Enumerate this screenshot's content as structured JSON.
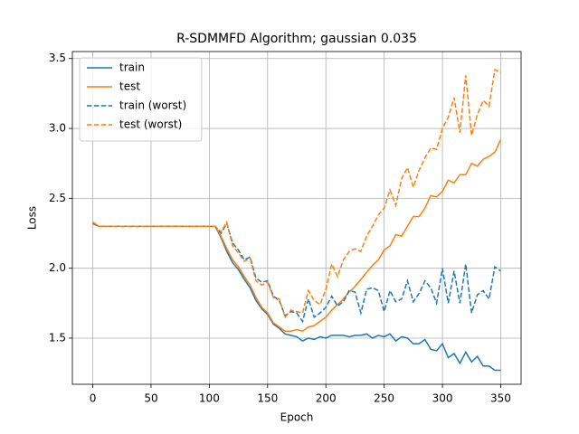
{
  "chart_data": {
    "type": "line",
    "title": "R-SDMMFD Algorithm; gaussian 0.035",
    "xlabel": "Epoch",
    "ylabel": "Loss",
    "x": [
      0,
      5,
      10,
      15,
      20,
      25,
      30,
      35,
      40,
      45,
      50,
      55,
      60,
      65,
      70,
      75,
      80,
      85,
      90,
      95,
      100,
      105,
      110,
      115,
      120,
      125,
      130,
      135,
      140,
      145,
      150,
      155,
      160,
      165,
      170,
      175,
      180,
      185,
      190,
      195,
      200,
      205,
      210,
      215,
      220,
      225,
      230,
      235,
      240,
      245,
      250,
      255,
      260,
      265,
      270,
      275,
      280,
      285,
      290,
      295,
      300,
      305,
      310,
      315,
      320,
      325,
      330,
      335,
      340,
      345,
      350
    ],
    "series": [
      {
        "name": "train",
        "color": "#1f77b4",
        "linestyle": "solid",
        "values": [
          2.32,
          2.3,
          2.3,
          2.3,
          2.3,
          2.3,
          2.3,
          2.3,
          2.3,
          2.3,
          2.3,
          2.3,
          2.3,
          2.3,
          2.3,
          2.3,
          2.3,
          2.3,
          2.3,
          2.3,
          2.3,
          2.3,
          2.22,
          2.12,
          2.04,
          1.99,
          1.92,
          1.86,
          1.77,
          1.71,
          1.67,
          1.6,
          1.57,
          1.53,
          1.52,
          1.51,
          1.48,
          1.5,
          1.49,
          1.51,
          1.5,
          1.52,
          1.52,
          1.52,
          1.51,
          1.52,
          1.52,
          1.53,
          1.5,
          1.52,
          1.51,
          1.53,
          1.48,
          1.51,
          1.5,
          1.46,
          1.46,
          1.49,
          1.42,
          1.41,
          1.46,
          1.36,
          1.39,
          1.32,
          1.4,
          1.33,
          1.37,
          1.3,
          1.3,
          1.27,
          1.27
        ]
      },
      {
        "name": "test",
        "color": "#ff7f0e",
        "linestyle": "solid",
        "values": [
          2.33,
          2.3,
          2.3,
          2.3,
          2.3,
          2.3,
          2.3,
          2.3,
          2.3,
          2.3,
          2.3,
          2.3,
          2.3,
          2.3,
          2.3,
          2.3,
          2.3,
          2.3,
          2.3,
          2.3,
          2.3,
          2.3,
          2.23,
          2.14,
          2.06,
          2.01,
          1.94,
          1.88,
          1.79,
          1.72,
          1.68,
          1.61,
          1.58,
          1.55,
          1.55,
          1.56,
          1.55,
          1.58,
          1.59,
          1.62,
          1.65,
          1.7,
          1.74,
          1.78,
          1.83,
          1.87,
          1.92,
          1.97,
          2.02,
          2.06,
          2.13,
          2.16,
          2.24,
          2.23,
          2.3,
          2.37,
          2.37,
          2.43,
          2.52,
          2.51,
          2.55,
          2.63,
          2.61,
          2.67,
          2.67,
          2.75,
          2.73,
          2.78,
          2.8,
          2.83,
          2.92
        ]
      },
      {
        "name": "train (worst)",
        "color": "#1f77b4",
        "linestyle": "dashed",
        "values": [
          2.32,
          2.3,
          2.3,
          2.3,
          2.3,
          2.3,
          2.3,
          2.3,
          2.3,
          2.3,
          2.3,
          2.3,
          2.3,
          2.3,
          2.3,
          2.3,
          2.3,
          2.3,
          2.3,
          2.3,
          2.3,
          2.3,
          2.25,
          2.32,
          2.18,
          2.13,
          2.06,
          2.08,
          1.93,
          1.9,
          1.91,
          1.8,
          1.77,
          1.66,
          1.69,
          1.68,
          1.62,
          1.78,
          1.65,
          1.68,
          1.72,
          1.8,
          1.73,
          1.76,
          1.84,
          1.83,
          1.68,
          1.85,
          1.86,
          1.84,
          1.69,
          1.84,
          1.76,
          1.78,
          1.91,
          1.76,
          1.82,
          1.91,
          1.86,
          1.75,
          2.0,
          1.75,
          1.98,
          1.75,
          2.03,
          1.68,
          1.81,
          1.84,
          1.78,
          2.01,
          1.98
        ]
      },
      {
        "name": "test (worst)",
        "color": "#ff7f0e",
        "linestyle": "dashed",
        "values": [
          2.33,
          2.3,
          2.3,
          2.3,
          2.3,
          2.3,
          2.3,
          2.3,
          2.3,
          2.3,
          2.3,
          2.3,
          2.3,
          2.3,
          2.3,
          2.3,
          2.3,
          2.3,
          2.3,
          2.3,
          2.3,
          2.3,
          2.26,
          2.33,
          2.16,
          2.11,
          2.05,
          2.07,
          1.91,
          1.88,
          1.9,
          1.79,
          1.78,
          1.65,
          1.7,
          1.69,
          1.68,
          1.84,
          1.77,
          1.74,
          1.85,
          2.03,
          1.94,
          2.06,
          2.12,
          2.14,
          2.12,
          2.23,
          2.3,
          2.38,
          2.43,
          2.56,
          2.45,
          2.64,
          2.72,
          2.58,
          2.7,
          2.79,
          2.86,
          2.85,
          3.0,
          3.08,
          3.22,
          2.97,
          3.38,
          2.95,
          3.1,
          3.2,
          3.16,
          3.42,
          3.4
        ]
      }
    ],
    "xlim": [
      -17.5,
      367.5
    ],
    "ylim": [
      1.17,
      3.55
    ],
    "xticks": [
      0,
      50,
      100,
      150,
      200,
      250,
      300,
      350
    ],
    "yticks": [
      1.5,
      {
        "value": 2.0,
        "label": "2.0"
      },
      2.5,
      {
        "value": 3.0,
        "label": "3.0"
      },
      3.5
    ],
    "grid": true,
    "legend": "upper-left"
  }
}
